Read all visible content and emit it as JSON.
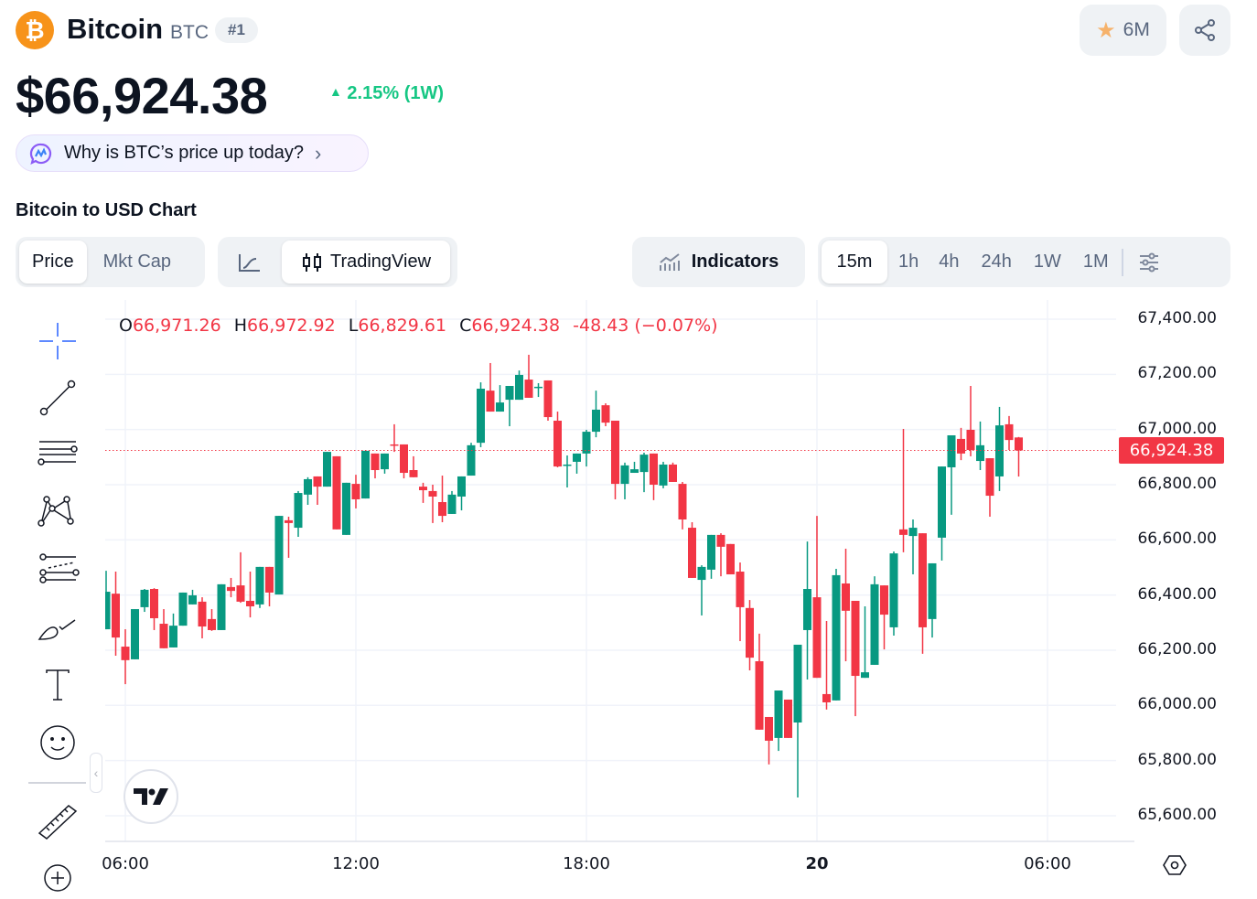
{
  "coin": {
    "name": "Bitcoin",
    "symbol": "BTC",
    "rank": "#1",
    "logo_icon": "bitcoin-icon",
    "logo_color": "#f7931a"
  },
  "price": "$66,924.38",
  "change": {
    "text": "2.15% (1W)",
    "direction": "up",
    "color": "#16c784"
  },
  "watch": {
    "count": "6M",
    "icon": "star-icon"
  },
  "share_icon": "share-icon",
  "ai_prompt": "Why is BTC’s price up today?",
  "section_title": "Bitcoin to USD Chart",
  "tabs": [
    {
      "label": "Price",
      "active": true
    },
    {
      "label": "Mkt Cap",
      "active": false
    }
  ],
  "chart_types": [
    {
      "icon": "line-chart-icon",
      "active": false
    },
    {
      "label": "TradingView",
      "icon": "candlestick-icon",
      "active": true
    }
  ],
  "indicators_label": "Indicators",
  "intervals": [
    {
      "label": "15m",
      "active": true
    },
    {
      "label": "1h"
    },
    {
      "label": "4h"
    },
    {
      "label": "24h"
    },
    {
      "label": "1W"
    },
    {
      "label": "1M"
    }
  ],
  "drawing_tools": [
    "crosshair-icon",
    "trend-line-icon",
    "fib-retracement-icon",
    "pattern-icon",
    "prediction-icon",
    "brush-icon",
    "text-icon",
    "emoji-icon",
    "ruler-icon",
    "zoom-in-icon"
  ],
  "colors": {
    "up": "#089981",
    "down": "#f23645"
  },
  "chart_data": {
    "type": "candlestick",
    "ohlc_readout": {
      "O": "66,971.26",
      "H": "66,972.92",
      "L": "66,829.61",
      "C": "66,924.38",
      "change": "-48.43 (−0.07%)"
    },
    "last_price_label": "66,924.38",
    "last_price": 66924.38,
    "ylim": [
      65530,
      67470
    ],
    "y_ticks": [
      "67,400.00",
      "67,200.00",
      "67,000.00",
      "66,800.00",
      "66,600.00",
      "66,400.00",
      "66,200.00",
      "66,000.00",
      "65,800.00",
      "65,600.00"
    ],
    "y_tick_values": [
      67400,
      67200,
      67000,
      66800,
      66600,
      66400,
      66200,
      66000,
      65800,
      65600
    ],
    "x_ticks": [
      {
        "label": "06:00",
        "time": "06:00"
      },
      {
        "label": "12:00",
        "time": "12:00"
      },
      {
        "label": "18:00",
        "time": "18:00"
      },
      {
        "label": "20",
        "time": "00:00"
      },
      {
        "label": "06:00",
        "time": "06:00"
      }
    ],
    "grid": true,
    "candles": [
      [
        "05:30",
        66276,
        66488,
        66276,
        66412
      ],
      [
        "05:45",
        66405,
        66485,
        66180,
        66246
      ],
      [
        "06:00",
        66213,
        66276,
        66077,
        66164
      ],
      [
        "06:15",
        66167,
        66349,
        66167,
        66349
      ],
      [
        "06:30",
        66356,
        66422,
        66339,
        66419
      ],
      [
        "06:45",
        66422,
        66425,
        66273,
        66316
      ],
      [
        "07:00",
        66296,
        66349,
        66207,
        66207
      ],
      [
        "07:15",
        66210,
        66333,
        66210,
        66289
      ],
      [
        "07:30",
        66289,
        66409,
        66289,
        66409
      ],
      [
        "07:45",
        66366,
        66419,
        66366,
        66399
      ],
      [
        "08:00",
        66376,
        66392,
        66243,
        66286
      ],
      [
        "08:15",
        66313,
        66349,
        66270,
        66273
      ],
      [
        "08:30",
        66273,
        66439,
        66273,
        66439
      ],
      [
        "08:45",
        66429,
        66462,
        66392,
        66415
      ],
      [
        "09:00",
        66435,
        66555,
        66372,
        66376
      ],
      [
        "09:15",
        66379,
        66485,
        66319,
        66359
      ],
      [
        "09:30",
        66366,
        66502,
        66353,
        66502
      ],
      [
        "09:45",
        66502,
        66502,
        66359,
        66409
      ],
      [
        "10:00",
        66402,
        66687,
        66402,
        66687
      ],
      [
        "10:15",
        66671,
        66684,
        66535,
        66661
      ],
      [
        "10:30",
        66644,
        66777,
        66611,
        66770
      ],
      [
        "10:45",
        66764,
        66827,
        66727,
        66820
      ],
      [
        "11:00",
        66830,
        66830,
        66727,
        66793
      ],
      [
        "11:15",
        66793,
        66919,
        66793,
        66919
      ],
      [
        "11:30",
        66903,
        66903,
        66638,
        66638
      ],
      [
        "11:45",
        66618,
        66807,
        66618,
        66807
      ],
      [
        "12:00",
        66803,
        66836,
        66714,
        66747
      ],
      [
        "12:15",
        66750,
        66923,
        66750,
        66923
      ],
      [
        "12:30",
        66913,
        66913,
        66823,
        66853
      ],
      [
        "12:45",
        66856,
        66913,
        66840,
        66913
      ],
      [
        "13:00",
        66946,
        67019,
        66919,
        66943
      ],
      [
        "13:15",
        66946,
        66946,
        66823,
        66843
      ],
      [
        "13:30",
        66853,
        66903,
        66827,
        66827
      ],
      [
        "13:45",
        66793,
        66807,
        66734,
        66780
      ],
      [
        "14:00",
        66777,
        66800,
        66661,
        66757
      ],
      [
        "14:15",
        66737,
        66833,
        66664,
        66687
      ],
      [
        "14:30",
        66694,
        66777,
        66694,
        66764
      ],
      [
        "14:45",
        66757,
        66830,
        66707,
        66830
      ],
      [
        "15:00",
        66833,
        66952,
        66833,
        66943
      ],
      [
        "15:15",
        66952,
        67171,
        66936,
        67148
      ],
      [
        "15:30",
        67141,
        67241,
        67065,
        67065
      ],
      [
        "15:45",
        67065,
        67161,
        67065,
        67098
      ],
      [
        "16:00",
        67108,
        67158,
        67012,
        67158
      ],
      [
        "16:15",
        67108,
        67214,
        67108,
        67198
      ],
      [
        "16:30",
        67181,
        67271,
        67115,
        67115
      ],
      [
        "16:45",
        67151,
        67168,
        67118,
        67155
      ],
      [
        "17:00",
        67178,
        67178,
        67032,
        67045
      ],
      [
        "17:15",
        67032,
        67065,
        66863,
        66866
      ],
      [
        "17:30",
        66870,
        66906,
        66790,
        66873
      ],
      [
        "17:45",
        66883,
        66913,
        66840,
        66913
      ],
      [
        "18:00",
        66913,
        66999,
        66866,
        66992
      ],
      [
        "18:15",
        66992,
        67141,
        66972,
        67072
      ],
      [
        "18:30",
        67088,
        67095,
        67012,
        67025
      ],
      [
        "18:45",
        67032,
        67032,
        66747,
        66803
      ],
      [
        "19:00",
        66803,
        66880,
        66747,
        66870
      ],
      [
        "19:15",
        66843,
        66883,
        66843,
        66856
      ],
      [
        "19:30",
        66846,
        66916,
        66773,
        66909
      ],
      [
        "19:45",
        66913,
        66913,
        66744,
        66800
      ],
      [
        "20:00",
        66797,
        66883,
        66787,
        66873
      ],
      [
        "20:15",
        66873,
        66880,
        66810,
        66810
      ],
      [
        "20:30",
        66803,
        66810,
        66638,
        66674
      ],
      [
        "20:45",
        66644,
        66664,
        66462,
        66462
      ],
      [
        "21:00",
        66455,
        66508,
        66326,
        66502
      ],
      [
        "21:15",
        66492,
        66618,
        66459,
        66618
      ],
      [
        "21:30",
        66618,
        66624,
        66468,
        66575
      ],
      [
        "21:45",
        66585,
        66585,
        66475,
        66475
      ],
      [
        "22:00",
        66485,
        66518,
        66233,
        66356
      ],
      [
        "22:15",
        66353,
        66382,
        66127,
        66173
      ],
      [
        "22:30",
        66160,
        66260,
        65912,
        65912
      ],
      [
        "22:45",
        65958,
        65958,
        65786,
        65872
      ],
      [
        "23:00",
        65882,
        66054,
        65835,
        66054
      ],
      [
        "23:15",
        66021,
        66021,
        65882,
        65882
      ],
      [
        "23:30",
        65938,
        66220,
        65666,
        66220
      ],
      [
        "23:45",
        66273,
        66594,
        66094,
        66422
      ],
      [
        "00:00",
        66392,
        66687,
        66100,
        66100
      ],
      [
        "00:15",
        66041,
        66306,
        65985,
        66011
      ],
      [
        "00:30",
        66018,
        66495,
        66018,
        66472
      ],
      [
        "00:45",
        66442,
        66568,
        66160,
        66343
      ],
      [
        "01:00",
        66379,
        66379,
        65961,
        66107
      ],
      [
        "01:15",
        66100,
        66359,
        66100,
        66120
      ],
      [
        "01:30",
        66147,
        66468,
        66147,
        66439
      ],
      [
        "01:45",
        66435,
        66435,
        66203,
        66329
      ],
      [
        "02:00",
        66283,
        66558,
        66253,
        66551
      ],
      [
        "02:15",
        66638,
        67002,
        66555,
        66618
      ],
      [
        "02:30",
        66614,
        66674,
        66475,
        66644
      ],
      [
        "02:45",
        66624,
        66624,
        66187,
        66283
      ],
      [
        "03:00",
        66313,
        66515,
        66246,
        66515
      ],
      [
        "03:15",
        66608,
        66866,
        66525,
        66866
      ],
      [
        "03:30",
        66863,
        66979,
        66691,
        66979
      ],
      [
        "03:45",
        66966,
        67006,
        66889,
        66913
      ],
      [
        "04:00",
        66999,
        67158,
        66903,
        66926
      ],
      [
        "04:15",
        66886,
        67029,
        66853,
        66943
      ],
      [
        "04:30",
        66896,
        66896,
        66684,
        66760
      ],
      [
        "04:45",
        66830,
        67082,
        66777,
        67015
      ],
      [
        "05:00",
        67019,
        67049,
        66926,
        66962
      ],
      [
        "05:15",
        66971.26,
        66972.92,
        66829.61,
        66924.38
      ]
    ]
  }
}
